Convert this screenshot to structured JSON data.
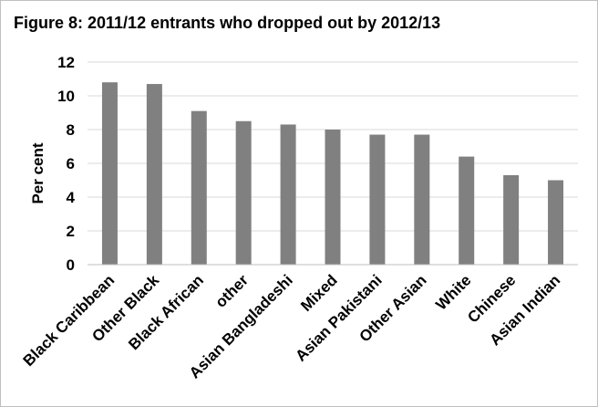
{
  "chart_data": {
    "type": "bar",
    "title": "Figure 8: 2011/12 entrants who dropped out by 2012/13",
    "xlabel": "",
    "ylabel": "Per cent",
    "ylim": [
      0,
      12
    ],
    "yticks": [
      0,
      2,
      4,
      6,
      8,
      10,
      12
    ],
    "grid": true,
    "legend": "none",
    "categories": [
      "Black Caribbean",
      "Other Black",
      "Black African",
      "other",
      "Asian Bangladeshi",
      "Mixed",
      "Asian Pakistani",
      "Other Asian",
      "White",
      "Chinese",
      "Asian Indian"
    ],
    "values": [
      10.8,
      10.7,
      9.1,
      8.5,
      8.3,
      8.0,
      7.7,
      7.7,
      6.4,
      5.3,
      5.0
    ],
    "colors": {
      "bar": "#808080",
      "grid": "#d9d9d9",
      "axis": "#bfbfbf"
    }
  }
}
